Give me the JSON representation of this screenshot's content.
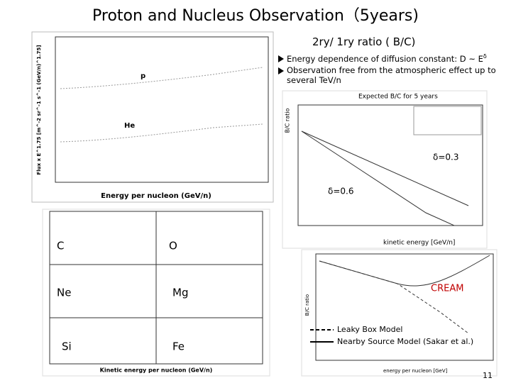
{
  "header": {
    "title": "Proton and Nucleus Observation（5years)"
  },
  "section": {
    "title": "2ry/ 1ry ratio ( B/C)",
    "bullets": [
      {
        "text": "Energy dependence of diffusion constant: D ~ E",
        "superscript": "δ"
      },
      {
        "text": "Observation free from the atmospheric effect up to several TeV/n"
      }
    ]
  },
  "panels": {
    "proton_helium": {
      "y_label": "Flux x E^1.75 [m^-2 sr^-1 s^-1 (GeV/n)^1.75]",
      "x_label": "Energy per nucleon (GeV/n)",
      "labels": [
        "p",
        "He"
      ]
    },
    "bc_expected": {
      "title": "Expected B/C for 5 years",
      "y_label": "B/C ratio",
      "x_label": "kinetic energy [GeV/n]",
      "labels": [
        "δ=0.3",
        "δ=0.6"
      ]
    },
    "heavy_nuclei": {
      "labels": [
        "C",
        "O",
        "Ne",
        "Mg",
        "Si",
        "Fe"
      ],
      "x_label": "Kinetic energy per nucleon (GeV/n)"
    },
    "bc_models": {
      "label": "CREAM",
      "legend": [
        "Leaky Box Model",
        "Nearby Source Model (Sakar et al.)"
      ],
      "y_label": "B/C ratio",
      "x_label": "energy per nucleon [GeV]"
    }
  },
  "footer": {
    "page": "11"
  }
}
